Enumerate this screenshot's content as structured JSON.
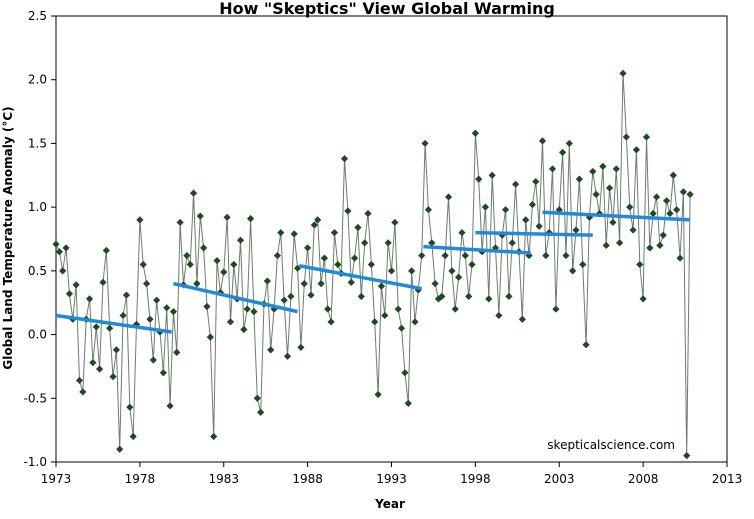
{
  "chart_data": {
    "type": "line",
    "title": "How \"Skeptics\" View Global Warming",
    "xlabel": "Year",
    "ylabel": "Global Land Temperature Anomaly (°C)",
    "xlim": [
      1973,
      2013
    ],
    "ylim": [
      -1.0,
      2.5
    ],
    "x_ticks": [
      1973,
      1978,
      1983,
      1988,
      1993,
      1998,
      2003,
      2008,
      2013
    ],
    "y_ticks": [
      -1.0,
      -0.5,
      0.0,
      0.5,
      1.0,
      1.5,
      2.0,
      2.5
    ],
    "x_tick_labels": [
      "1973",
      "1978",
      "1983",
      "1988",
      "1993",
      "1998",
      "2003",
      "2008",
      "2013"
    ],
    "y_tick_labels": [
      "-1.0",
      "-0.5",
      "0.0",
      "0.5",
      "1.0",
      "1.5",
      "2.0",
      "2.5"
    ],
    "grid": false,
    "legend": "none",
    "watermark": "skepticalscience.com",
    "series": [
      {
        "marker": "diamond",
        "color": "#1f4a1f",
        "line_color": "#6b7d6b",
        "points": [
          [
            1973.0,
            0.71
          ],
          [
            1973.2,
            0.65
          ],
          [
            1973.4,
            0.5
          ],
          [
            1973.6,
            0.68
          ],
          [
            1973.8,
            0.32
          ],
          [
            1974.0,
            0.12
          ],
          [
            1974.2,
            0.39
          ],
          [
            1974.4,
            -0.36
          ],
          [
            1974.6,
            -0.45
          ],
          [
            1974.8,
            0.12
          ],
          [
            1975.0,
            0.28
          ],
          [
            1975.2,
            -0.22
          ],
          [
            1975.4,
            0.06
          ],
          [
            1975.6,
            -0.27
          ],
          [
            1975.8,
            0.41
          ],
          [
            1976.0,
            0.66
          ],
          [
            1976.2,
            0.05
          ],
          [
            1976.4,
            -0.33
          ],
          [
            1976.6,
            -0.12
          ],
          [
            1976.8,
            -0.9
          ],
          [
            1977.0,
            0.15
          ],
          [
            1977.2,
            0.31
          ],
          [
            1977.4,
            -0.57
          ],
          [
            1977.6,
            -0.8
          ],
          [
            1977.8,
            0.08
          ],
          [
            1978.0,
            0.9
          ],
          [
            1978.2,
            0.55
          ],
          [
            1978.4,
            0.4
          ],
          [
            1978.6,
            0.12
          ],
          [
            1978.8,
            -0.2
          ],
          [
            1979.0,
            0.27
          ],
          [
            1979.2,
            0.02
          ],
          [
            1979.4,
            -0.3
          ],
          [
            1979.6,
            0.21
          ],
          [
            1979.8,
            -0.56
          ],
          [
            1980.0,
            0.18
          ],
          [
            1980.2,
            -0.14
          ],
          [
            1980.4,
            0.88
          ],
          [
            1980.6,
            0.39
          ],
          [
            1980.8,
            0.62
          ],
          [
            1981.0,
            0.55
          ],
          [
            1981.2,
            1.11
          ],
          [
            1981.4,
            0.4
          ],
          [
            1981.6,
            0.93
          ],
          [
            1981.8,
            0.68
          ],
          [
            1982.0,
            0.22
          ],
          [
            1982.2,
            -0.02
          ],
          [
            1982.4,
            -0.8
          ],
          [
            1982.6,
            0.58
          ],
          [
            1982.8,
            0.33
          ],
          [
            1983.0,
            0.49
          ],
          [
            1983.2,
            0.92
          ],
          [
            1983.4,
            0.1
          ],
          [
            1983.6,
            0.55
          ],
          [
            1983.8,
            0.28
          ],
          [
            1984.0,
            0.74
          ],
          [
            1984.2,
            0.04
          ],
          [
            1984.4,
            0.2
          ],
          [
            1984.6,
            0.91
          ],
          [
            1984.8,
            0.18
          ],
          [
            1985.0,
            -0.5
          ],
          [
            1985.2,
            -0.61
          ],
          [
            1985.4,
            0.24
          ],
          [
            1985.6,
            0.42
          ],
          [
            1985.8,
            -0.12
          ],
          [
            1986.0,
            0.2
          ],
          [
            1986.2,
            0.62
          ],
          [
            1986.4,
            0.8
          ],
          [
            1986.6,
            0.27
          ],
          [
            1986.8,
            -0.17
          ],
          [
            1987.0,
            0.3
          ],
          [
            1987.2,
            0.79
          ],
          [
            1987.4,
            0.52
          ],
          [
            1987.6,
            -0.1
          ],
          [
            1987.8,
            0.4
          ],
          [
            1988.0,
            0.68
          ],
          [
            1988.2,
            0.31
          ],
          [
            1988.4,
            0.86
          ],
          [
            1988.6,
            0.9
          ],
          [
            1988.8,
            0.4
          ],
          [
            1989.0,
            0.6
          ],
          [
            1989.2,
            0.2
          ],
          [
            1989.4,
            0.1
          ],
          [
            1989.6,
            0.8
          ],
          [
            1989.8,
            0.55
          ],
          [
            1990.0,
            0.48
          ],
          [
            1990.2,
            1.38
          ],
          [
            1990.4,
            0.97
          ],
          [
            1990.6,
            0.41
          ],
          [
            1990.8,
            0.6
          ],
          [
            1991.0,
            0.84
          ],
          [
            1991.2,
            0.3
          ],
          [
            1991.4,
            0.72
          ],
          [
            1991.6,
            0.95
          ],
          [
            1991.8,
            0.55
          ],
          [
            1992.0,
            0.1
          ],
          [
            1992.2,
            -0.47
          ],
          [
            1992.4,
            0.38
          ],
          [
            1992.6,
            0.15
          ],
          [
            1992.8,
            0.72
          ],
          [
            1993.0,
            0.5
          ],
          [
            1993.2,
            0.88
          ],
          [
            1993.4,
            0.2
          ],
          [
            1993.6,
            0.05
          ],
          [
            1993.8,
            -0.3
          ],
          [
            1994.0,
            -0.54
          ],
          [
            1994.2,
            0.5
          ],
          [
            1994.4,
            0.1
          ],
          [
            1994.6,
            0.35
          ],
          [
            1994.8,
            0.62
          ],
          [
            1995.0,
            1.5
          ],
          [
            1995.2,
            0.98
          ],
          [
            1995.4,
            0.72
          ],
          [
            1995.6,
            0.4
          ],
          [
            1995.8,
            0.28
          ],
          [
            1996.0,
            0.3
          ],
          [
            1996.2,
            0.62
          ],
          [
            1996.4,
            1.08
          ],
          [
            1996.6,
            0.5
          ],
          [
            1996.8,
            0.2
          ],
          [
            1997.0,
            0.45
          ],
          [
            1997.2,
            0.8
          ],
          [
            1997.4,
            0.62
          ],
          [
            1997.6,
            0.3
          ],
          [
            1997.8,
            0.55
          ],
          [
            1998.0,
            1.58
          ],
          [
            1998.2,
            1.22
          ],
          [
            1998.4,
            0.65
          ],
          [
            1998.6,
            1.0
          ],
          [
            1998.8,
            0.28
          ],
          [
            1999.0,
            1.25
          ],
          [
            1999.2,
            0.68
          ],
          [
            1999.4,
            0.15
          ],
          [
            1999.6,
            0.78
          ],
          [
            1999.8,
            0.98
          ],
          [
            2000.0,
            0.3
          ],
          [
            2000.2,
            0.72
          ],
          [
            2000.4,
            1.18
          ],
          [
            2000.6,
            0.65
          ],
          [
            2000.8,
            0.12
          ],
          [
            2001.0,
            0.9
          ],
          [
            2001.2,
            0.62
          ],
          [
            2001.4,
            1.02
          ],
          [
            2001.6,
            1.2
          ],
          [
            2001.8,
            0.85
          ],
          [
            2002.0,
            1.52
          ],
          [
            2002.2,
            0.62
          ],
          [
            2002.4,
            0.8
          ],
          [
            2002.6,
            1.3
          ],
          [
            2002.8,
            0.2
          ],
          [
            2003.0,
            0.98
          ],
          [
            2003.2,
            1.43
          ],
          [
            2003.4,
            0.62
          ],
          [
            2003.6,
            1.5
          ],
          [
            2003.8,
            0.5
          ],
          [
            2004.0,
            0.82
          ],
          [
            2004.2,
            1.22
          ],
          [
            2004.4,
            0.55
          ],
          [
            2004.6,
            -0.08
          ],
          [
            2004.8,
            0.92
          ],
          [
            2005.0,
            1.28
          ],
          [
            2005.2,
            1.1
          ],
          [
            2005.4,
            0.95
          ],
          [
            2005.6,
            1.32
          ],
          [
            2005.8,
            0.7
          ],
          [
            2006.0,
            1.15
          ],
          [
            2006.2,
            0.88
          ],
          [
            2006.4,
            1.3
          ],
          [
            2006.6,
            0.72
          ],
          [
            2006.8,
            2.05
          ],
          [
            2007.0,
            1.55
          ],
          [
            2007.2,
            1.0
          ],
          [
            2007.4,
            0.82
          ],
          [
            2007.6,
            1.45
          ],
          [
            2007.8,
            0.55
          ],
          [
            2008.0,
            0.28
          ],
          [
            2008.2,
            1.55
          ],
          [
            2008.4,
            0.68
          ],
          [
            2008.6,
            0.95
          ],
          [
            2008.8,
            1.08
          ],
          [
            2009.0,
            0.7
          ],
          [
            2009.2,
            0.78
          ],
          [
            2009.4,
            1.05
          ],
          [
            2009.6,
            0.95
          ],
          [
            2009.8,
            1.25
          ],
          [
            2010.0,
            0.98
          ],
          [
            2010.2,
            0.6
          ],
          [
            2010.4,
            1.12
          ],
          [
            2010.6,
            -0.95
          ],
          [
            2010.8,
            1.1
          ]
        ]
      }
    ],
    "trend_lines": [
      {
        "x": [
          1973.0,
          1979.9
        ],
        "y": [
          0.15,
          0.02
        ],
        "color": "#1f8ad6"
      },
      {
        "x": [
          1980.0,
          1987.4
        ],
        "y": [
          0.4,
          0.18
        ],
        "color": "#1f8ad6"
      },
      {
        "x": [
          1987.5,
          1994.8
        ],
        "y": [
          0.54,
          0.36
        ],
        "color": "#1f8ad6"
      },
      {
        "x": [
          1994.9,
          2001.3
        ],
        "y": [
          0.69,
          0.64
        ],
        "color": "#1f8ad6"
      },
      {
        "x": [
          1998.0,
          2005.0
        ],
        "y": [
          0.8,
          0.78
        ],
        "color": "#1f8ad6"
      },
      {
        "x": [
          2002.0,
          2010.8
        ],
        "y": [
          0.96,
          0.9
        ],
        "color": "#1f8ad6"
      }
    ]
  }
}
